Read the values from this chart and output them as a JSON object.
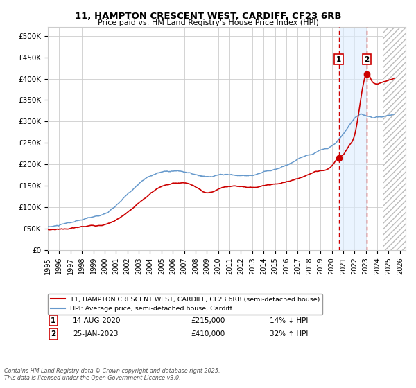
{
  "title1": "11, HAMPTON CRESCENT WEST, CARDIFF, CF23 6RB",
  "title2": "Price paid vs. HM Land Registry's House Price Index (HPI)",
  "ylim": [
    0,
    520000
  ],
  "xlim_start": 1995.0,
  "xlim_end": 2026.5,
  "yticks": [
    0,
    50000,
    100000,
    150000,
    200000,
    250000,
    300000,
    350000,
    400000,
    450000,
    500000
  ],
  "ytick_labels": [
    "£0",
    "£50K",
    "£100K",
    "£150K",
    "£200K",
    "£250K",
    "£300K",
    "£350K",
    "£400K",
    "£450K",
    "£500K"
  ],
  "xticks": [
    1995,
    1996,
    1997,
    1998,
    1999,
    2000,
    2001,
    2002,
    2003,
    2004,
    2005,
    2006,
    2007,
    2008,
    2009,
    2010,
    2011,
    2012,
    2013,
    2014,
    2015,
    2016,
    2017,
    2018,
    2019,
    2020,
    2021,
    2022,
    2023,
    2024,
    2025,
    2026
  ],
  "red_line_color": "#cc0000",
  "blue_line_color": "#6699cc",
  "grid_color": "#cccccc",
  "bg_color": "#ffffff",
  "marker1_date": 2020.617,
  "marker1_price": 215000,
  "marker2_date": 2023.07,
  "marker2_price": 410000,
  "dashed_line1_x": 2020.617,
  "dashed_line2_x": 2023.07,
  "shade_start": 2020.617,
  "shade_end": 2023.07,
  "legend_line1": "11, HAMPTON CRESCENT WEST, CARDIFF, CF23 6RB (semi-detached house)",
  "legend_line2": "HPI: Average price, semi-detached house, Cardiff",
  "ann1_date": "14-AUG-2020",
  "ann1_price": "£215,000",
  "ann1_hpi": "14% ↓ HPI",
  "ann2_date": "25-JAN-2023",
  "ann2_price": "£410,000",
  "ann2_hpi": "32% ↑ HPI",
  "footer": "Contains HM Land Registry data © Crown copyright and database right 2025.\nThis data is licensed under the Open Government Licence v3.0.",
  "hatching_start": 2024.5,
  "hatching_end": 2026.5,
  "blue_keypoints": [
    [
      1995.0,
      55000
    ],
    [
      1996.0,
      58000
    ],
    [
      1997.0,
      63000
    ],
    [
      1998.0,
      68000
    ],
    [
      1999.0,
      75000
    ],
    [
      2000.0,
      83000
    ],
    [
      2001.0,
      100000
    ],
    [
      2002.0,
      125000
    ],
    [
      2003.0,
      150000
    ],
    [
      2004.0,
      168000
    ],
    [
      2005.0,
      178000
    ],
    [
      2006.0,
      182000
    ],
    [
      2007.0,
      180000
    ],
    [
      2008.0,
      172000
    ],
    [
      2009.0,
      165000
    ],
    [
      2010.0,
      168000
    ],
    [
      2011.0,
      168000
    ],
    [
      2012.0,
      166000
    ],
    [
      2013.0,
      168000
    ],
    [
      2014.0,
      175000
    ],
    [
      2015.0,
      182000
    ],
    [
      2016.0,
      192000
    ],
    [
      2017.0,
      205000
    ],
    [
      2018.0,
      218000
    ],
    [
      2019.0,
      230000
    ],
    [
      2020.0,
      240000
    ],
    [
      2021.0,
      268000
    ],
    [
      2022.0,
      300000
    ],
    [
      2022.5,
      308000
    ],
    [
      2023.0,
      305000
    ],
    [
      2023.5,
      300000
    ],
    [
      2024.0,
      302000
    ],
    [
      2024.5,
      305000
    ],
    [
      2025.0,
      308000
    ],
    [
      2025.5,
      310000
    ]
  ],
  "red_keypoints": [
    [
      1995.0,
      48000
    ],
    [
      1996.0,
      50000
    ],
    [
      1997.0,
      52000
    ],
    [
      1998.0,
      55000
    ],
    [
      1999.0,
      58000
    ],
    [
      2000.0,
      62000
    ],
    [
      2001.0,
      72000
    ],
    [
      2002.0,
      88000
    ],
    [
      2003.0,
      108000
    ],
    [
      2004.0,
      130000
    ],
    [
      2005.0,
      148000
    ],
    [
      2006.0,
      155000
    ],
    [
      2007.0,
      157000
    ],
    [
      2008.0,
      148000
    ],
    [
      2009.0,
      130000
    ],
    [
      2010.0,
      138000
    ],
    [
      2011.0,
      145000
    ],
    [
      2012.0,
      145000
    ],
    [
      2013.0,
      142000
    ],
    [
      2014.0,
      148000
    ],
    [
      2015.0,
      152000
    ],
    [
      2016.0,
      158000
    ],
    [
      2017.0,
      165000
    ],
    [
      2018.0,
      175000
    ],
    [
      2019.0,
      185000
    ],
    [
      2020.0,
      195000
    ],
    [
      2020.617,
      215000
    ],
    [
      2021.0,
      220000
    ],
    [
      2021.5,
      240000
    ],
    [
      2022.0,
      265000
    ],
    [
      2023.07,
      410000
    ],
    [
      2023.5,
      395000
    ],
    [
      2024.0,
      385000
    ],
    [
      2024.5,
      390000
    ],
    [
      2025.0,
      395000
    ],
    [
      2025.5,
      400000
    ]
  ]
}
